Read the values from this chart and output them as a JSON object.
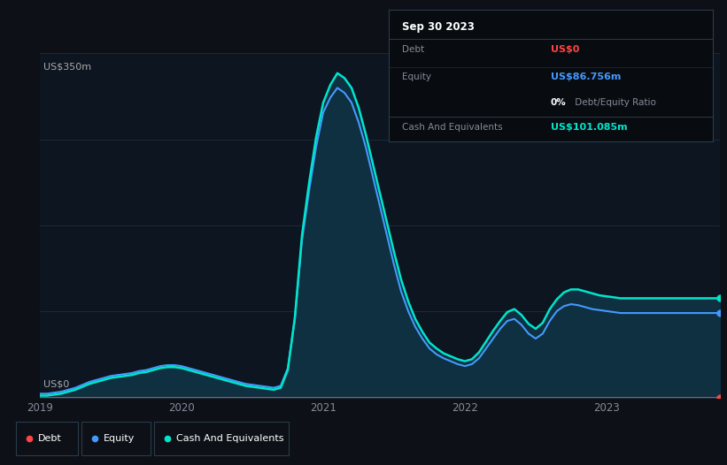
{
  "bg_color": "#0d1117",
  "plot_bg_color": "#0d1520",
  "grid_color": "#1e2d3d",
  "title_box": {
    "date": "Sep 30 2023",
    "debt_label": "Debt",
    "debt_value": "US$0",
    "debt_color": "#ff4444",
    "equity_label": "Equity",
    "equity_value": "US$86.756m",
    "equity_color": "#4499ff",
    "ratio_bold": "0%",
    "ratio_rest": " Debt/Equity Ratio",
    "cash_label": "Cash And Equivalents",
    "cash_value": "US$101.085m",
    "cash_color": "#00e5cc",
    "box_bg": "#080c10",
    "box_border": "#2a3a4a"
  },
  "y_label_top": "US$350m",
  "y_label_bottom": "US$0",
  "x_ticks": [
    "2019",
    "2020",
    "2021",
    "2022",
    "2023"
  ],
  "x_tick_pos": [
    0.0,
    1.0,
    2.0,
    3.0,
    4.0
  ],
  "debt_color": "#ff4444",
  "equity_color": "#4499ff",
  "cash_color": "#00e5cc",
  "fill_color": "#0e3040",
  "xlim": [
    0,
    4.8
  ],
  "ylim": [
    0,
    350
  ],
  "x": [
    0.0,
    0.05,
    0.1,
    0.15,
    0.2,
    0.25,
    0.3,
    0.35,
    0.4,
    0.45,
    0.5,
    0.55,
    0.6,
    0.65,
    0.7,
    0.75,
    0.8,
    0.85,
    0.9,
    0.95,
    1.0,
    1.05,
    1.1,
    1.15,
    1.2,
    1.25,
    1.3,
    1.35,
    1.4,
    1.45,
    1.5,
    1.55,
    1.6,
    1.65,
    1.7,
    1.75,
    1.8,
    1.85,
    1.9,
    1.95,
    2.0,
    2.05,
    2.1,
    2.15,
    2.2,
    2.25,
    2.3,
    2.35,
    2.4,
    2.45,
    2.5,
    2.55,
    2.6,
    2.65,
    2.7,
    2.75,
    2.8,
    2.85,
    2.9,
    2.95,
    3.0,
    3.05,
    3.1,
    3.15,
    3.2,
    3.25,
    3.3,
    3.35,
    3.4,
    3.45,
    3.5,
    3.55,
    3.6,
    3.65,
    3.7,
    3.75,
    3.8,
    3.85,
    3.9,
    3.95,
    4.0,
    4.05,
    4.1,
    4.15,
    4.2,
    4.25,
    4.3,
    4.35,
    4.4,
    4.45,
    4.5,
    4.55,
    4.6,
    4.65,
    4.7,
    4.75,
    4.8
  ],
  "equity": [
    4,
    4,
    5,
    6,
    8,
    10,
    13,
    16,
    18,
    20,
    22,
    23,
    24,
    25,
    27,
    28,
    30,
    32,
    33,
    33,
    32,
    30,
    28,
    26,
    24,
    22,
    20,
    18,
    16,
    14,
    13,
    12,
    11,
    10,
    12,
    30,
    80,
    160,
    210,
    255,
    290,
    305,
    315,
    310,
    300,
    280,
    255,
    225,
    195,
    165,
    135,
    108,
    88,
    72,
    60,
    50,
    44,
    40,
    37,
    34,
    32,
    34,
    40,
    50,
    60,
    70,
    78,
    80,
    74,
    65,
    60,
    65,
    78,
    88,
    93,
    95,
    94,
    92,
    90,
    89,
    88,
    87,
    86,
    86,
    86,
    86,
    86,
    86,
    86,
    86,
    86,
    86,
    86,
    86,
    86,
    86,
    86
  ],
  "cash": [
    2,
    2,
    3,
    4,
    6,
    8,
    11,
    14,
    16,
    18,
    20,
    21,
    22,
    23,
    25,
    26,
    28,
    30,
    31,
    31,
    30,
    28,
    26,
    24,
    22,
    20,
    18,
    16,
    14,
    12,
    11,
    10,
    9,
    8,
    10,
    28,
    82,
    165,
    218,
    265,
    300,
    318,
    330,
    325,
    315,
    295,
    268,
    238,
    208,
    178,
    148,
    120,
    98,
    80,
    67,
    56,
    50,
    45,
    42,
    39,
    37,
    39,
    46,
    57,
    68,
    78,
    87,
    90,
    84,
    75,
    70,
    76,
    90,
    100,
    107,
    110,
    110,
    108,
    106,
    104,
    103,
    102,
    101,
    101,
    101,
    101,
    101,
    101,
    101,
    101,
    101,
    101,
    101,
    101,
    101,
    101,
    101
  ],
  "debt": [
    0,
    0,
    0,
    0,
    0,
    0,
    0,
    0,
    0,
    0,
    0,
    0,
    0,
    0,
    0,
    0,
    0,
    0,
    0,
    0,
    0,
    0,
    0,
    0,
    0,
    0,
    0,
    0,
    0,
    0,
    0,
    0,
    0,
    0,
    0,
    0,
    0,
    0,
    0,
    0,
    0,
    0,
    0,
    0,
    0,
    0,
    0,
    0,
    0,
    0,
    0,
    0,
    0,
    0,
    0,
    0,
    0,
    0,
    0,
    0,
    0,
    0,
    0,
    0,
    0,
    0,
    0,
    0,
    0,
    0,
    0,
    0,
    0,
    0,
    0,
    0,
    0,
    0,
    0,
    0,
    0,
    0,
    0,
    0,
    0,
    0,
    0,
    0,
    0,
    0,
    0,
    0,
    0,
    0,
    0,
    0,
    0
  ]
}
